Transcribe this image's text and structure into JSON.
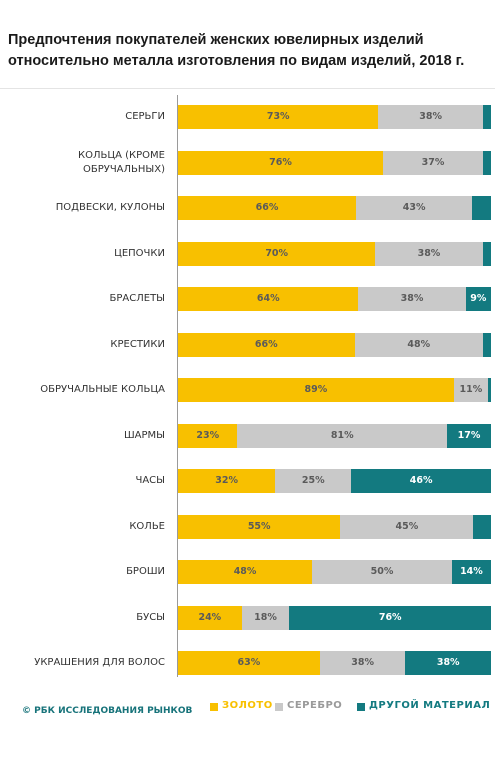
{
  "chart_data": {
    "type": "bar",
    "stacked": true,
    "orientation": "horizontal",
    "title": "Предпочтения покупателей женских ювелирных изделий относительно металла изготовления по видам изделий, 2018 г.",
    "source": "© РБК ИССЛЕДОВАНИЯ РЫНКОВ",
    "categories": [
      "СЕРЬГИ",
      "КОЛЬЦА (КРОМЕ ОБРУЧАЛЬНЫХ)",
      "ПОДВЕСКИ, КУЛОНЫ",
      "ЦЕПОЧКИ",
      "БРАСЛЕТЫ",
      "КРЕСТИКИ",
      "ОБРУЧАЛЬНЫЕ КОЛЬЦА",
      "ШАРМЫ",
      "ЧАСЫ",
      "КОЛЬЕ",
      "БРОШИ",
      "БУСЫ",
      "УКРАШЕНИЯ ДЛЯ ВОЛОС"
    ],
    "series": [
      {
        "name": "ЗОЛОТО",
        "color": "#f8c000",
        "label_color": "#5a5a5a",
        "values": [
          73,
          76,
          66,
          70,
          64,
          66,
          89,
          23,
          32,
          55,
          48,
          24,
          63
        ],
        "value_labels": [
          "73%",
          "76%",
          "66%",
          "70%",
          "64%",
          "66%",
          "89%",
          "23%",
          "32%",
          "55%",
          "48%",
          "24%",
          "63%"
        ]
      },
      {
        "name": "СЕРЕБРО",
        "color": "#c9c9c9",
        "label_color": "#5a5a5a",
        "values": [
          38,
          37,
          43,
          38,
          38,
          48,
          11,
          81,
          25,
          45,
          50,
          18,
          38
        ],
        "value_labels": [
          "38%",
          "37%",
          "43%",
          "38%",
          "38%",
          "48%",
          "11%",
          "81%",
          "25%",
          "45%",
          "50%",
          "18%",
          "38%"
        ]
      },
      {
        "name": "ДРУГОЙ МАТЕРИАЛ",
        "color": "#137a80",
        "label_color": "#ffffff",
        "values": [
          3,
          3,
          7,
          3,
          9,
          3,
          1,
          17,
          46,
          6,
          14,
          76,
          38
        ],
        "value_labels": [
          null,
          null,
          null,
          null,
          "9%",
          null,
          null,
          "17%",
          "46%",
          null,
          "14%",
          "76%",
          "38%"
        ]
      }
    ]
  }
}
